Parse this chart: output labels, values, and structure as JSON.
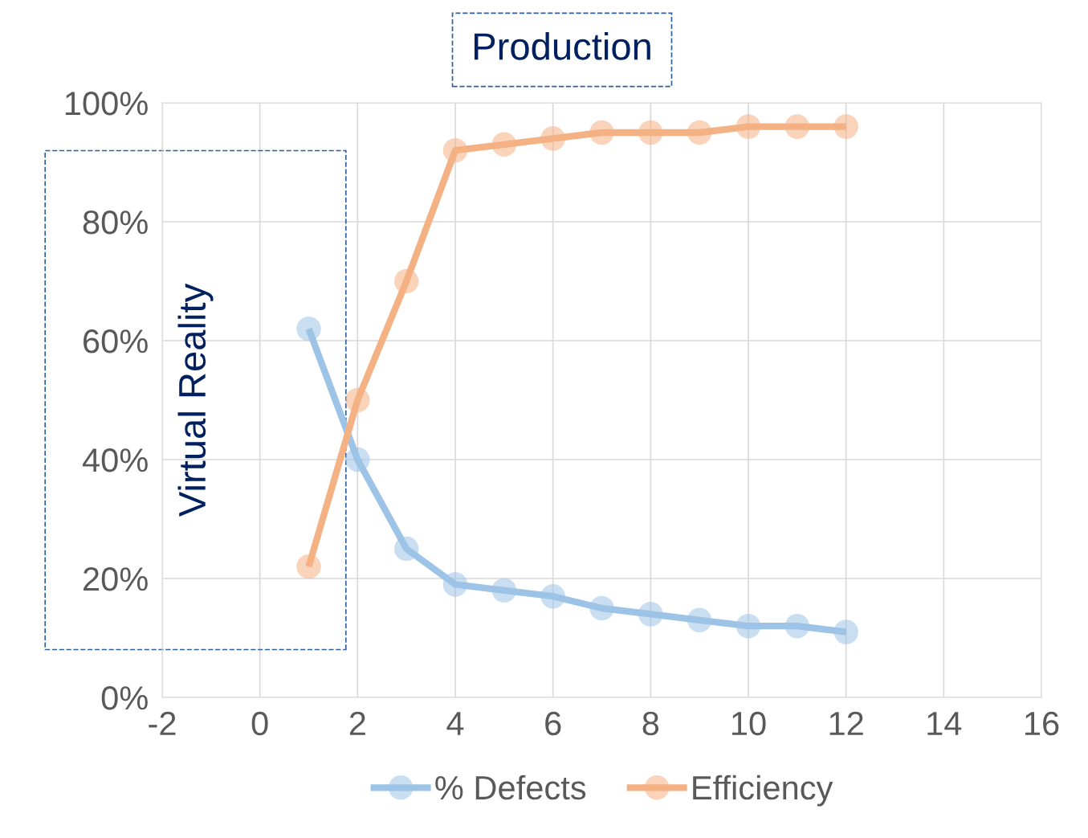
{
  "chart_data": {
    "type": "line",
    "title": "Production",
    "ylabel": "Virtual Reality",
    "x": [
      1,
      2,
      3,
      4,
      5,
      6,
      7,
      8,
      9,
      10,
      11,
      12
    ],
    "series": [
      {
        "name": "% Defects",
        "color": "#9dc3e6",
        "values": [
          62,
          40,
          25,
          19,
          18,
          17,
          15,
          14,
          13,
          12,
          12,
          11
        ]
      },
      {
        "name": "Efficiency",
        "color": "#f4b183",
        "values": [
          22,
          50,
          70,
          92,
          93,
          94,
          95,
          95,
          95,
          96,
          96,
          96
        ]
      }
    ],
    "xlim": [
      -2,
      16
    ],
    "xticks": [
      -2,
      0,
      2,
      4,
      6,
      8,
      10,
      12,
      14,
      16
    ],
    "ylim": [
      0,
      100
    ],
    "yticks": [
      {
        "value": 0,
        "label": "0%"
      },
      {
        "value": 20,
        "label": "20%"
      },
      {
        "value": 40,
        "label": "40%"
      },
      {
        "value": 60,
        "label": "60%"
      },
      {
        "value": 80,
        "label": "80%"
      },
      {
        "value": 100,
        "label": "100%"
      }
    ],
    "grid": true,
    "legend": "bottom",
    "marker": "circle",
    "line_style": "solid"
  }
}
